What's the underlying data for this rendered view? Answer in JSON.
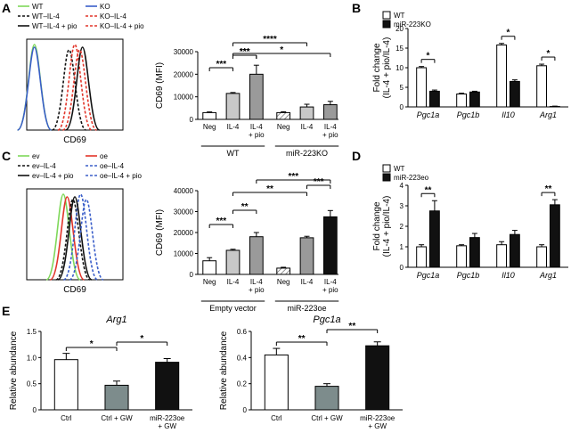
{
  "figure": {
    "panel_labels": [
      "A",
      "B",
      "C",
      "D",
      "E"
    ]
  },
  "colors": {
    "wt": "#7fd85a",
    "ko": "#3a5ec9",
    "ko_il4": "#e2352a",
    "ko_pio": "#e2352a",
    "ev": "#7fd85a",
    "oe": "#e2352a",
    "oe_il4": "#3a5ec9",
    "bar_white": "#ffffff",
    "bar_light": "#c8c8c8",
    "bar_mid": "#9a9a9a",
    "bar_dark": "#7a7a7a",
    "bar_black": "#111111",
    "bar_teal": "#7d8c8c"
  },
  "chart_data": [
    {
      "id": "A_histogram",
      "type": "line",
      "xlabel": "CD69",
      "legend": [
        "WT",
        "KO",
        "WT–IL-4",
        "KO–IL-4",
        "WT–IL-4 + pio",
        "KO–IL-4 + pio"
      ],
      "legend_styles": [
        "solid",
        "solid",
        "dashed",
        "dashed",
        "solid",
        "dashed"
      ],
      "legend_colors": [
        "#7fd85a",
        "#3a5ec9",
        "#111111",
        "#e2352a",
        "#111111",
        "#e2352a"
      ],
      "peaks": [
        0.08,
        0.08,
        0.44,
        0.5,
        0.58,
        0.55
      ]
    },
    {
      "id": "A_bar",
      "type": "bar",
      "ylabel": "CD69 (MFI)",
      "ylim": [
        0,
        30000
      ],
      "yticks": [
        0,
        10000,
        20000,
        30000
      ],
      "categories": [
        "Neg",
        "IL-4",
        "IL-4\n+ pio",
        "Neg",
        "IL-4",
        "IL-4\n+ pio"
      ],
      "groups": [
        "WT",
        "miR-223KO"
      ],
      "values": [
        3000,
        11500,
        20000,
        3000,
        5500,
        6500
      ],
      "errors": [
        300,
        400,
        4000,
        400,
        1200,
        1500
      ],
      "fills": [
        "white",
        "light",
        "mid",
        "hatch",
        "light",
        "mid"
      ],
      "significance": [
        "***",
        "***",
        "***",
        "****",
        "*"
      ]
    },
    {
      "id": "B_bar",
      "type": "bar",
      "ylabel": "Fold change\n(IL-4 + pio/IL-4)",
      "ylim": [
        0,
        20
      ],
      "yticks": [
        0,
        5,
        10,
        15,
        20
      ],
      "categories": [
        "Pgc1a",
        "Pgc1b",
        "Il10",
        "Arg1"
      ],
      "series": [
        {
          "name": "WT",
          "values": [
            10,
            3.3,
            15.8,
            10.5
          ],
          "errors": [
            0.3,
            0.2,
            0.4,
            0.4
          ]
        },
        {
          "name": "miR-223KO",
          "values": [
            4,
            3.8,
            6.5,
            0.1
          ],
          "errors": [
            0.3,
            0.2,
            0.4,
            0.1
          ]
        }
      ],
      "significance": [
        "*",
        "",
        "*",
        "*"
      ]
    },
    {
      "id": "C_histogram",
      "type": "line",
      "xlabel": "CD69",
      "legend": [
        "ev",
        "oe",
        "ev–IL-4",
        "oe–IL-4",
        "ev–IL-4 + pio",
        "oe–IL-4 + pio"
      ],
      "legend_styles": [
        "solid",
        "solid",
        "dashed",
        "dashed",
        "solid",
        "dashed"
      ],
      "legend_colors": [
        "#7fd85a",
        "#e2352a",
        "#111111",
        "#3a5ec9",
        "#111111",
        "#3a5ec9"
      ],
      "peaks": [
        0.38,
        0.42,
        0.48,
        0.56,
        0.5,
        0.62
      ]
    },
    {
      "id": "C_bar",
      "type": "bar",
      "ylabel": "CD69 (MFI)",
      "ylim": [
        0,
        40000
      ],
      "yticks": [
        0,
        10000,
        20000,
        30000,
        40000
      ],
      "categories": [
        "Neg",
        "IL-4",
        "IL-4\n+ pio",
        "Neg",
        "IL-4",
        "IL-4\n+ pio"
      ],
      "groups": [
        "Empty vector",
        "miR-223oe"
      ],
      "values": [
        6500,
        11500,
        18000,
        3000,
        17500,
        27500
      ],
      "errors": [
        1500,
        500,
        2000,
        400,
        700,
        3000
      ],
      "fills": [
        "white",
        "light",
        "mid",
        "hatch",
        "mid",
        "black"
      ],
      "significance": [
        "***",
        "**",
        "**",
        "***",
        "***"
      ]
    },
    {
      "id": "D_bar",
      "type": "bar",
      "ylabel": "Fold change\n(IL-4 + pio/IL-4)",
      "ylim": [
        0,
        4
      ],
      "yticks": [
        0,
        1,
        2,
        3,
        4
      ],
      "categories": [
        "Pgc1a",
        "Pgc1b",
        "Il10",
        "Arg1"
      ],
      "series": [
        {
          "name": "WT",
          "values": [
            1.0,
            1.05,
            1.1,
            1.0
          ],
          "errors": [
            0.1,
            0.05,
            0.15,
            0.1
          ]
        },
        {
          "name": "miR-223eo",
          "values": [
            2.75,
            1.45,
            1.6,
            3.05
          ],
          "errors": [
            0.5,
            0.2,
            0.2,
            0.25
          ]
        }
      ],
      "significance": [
        "**",
        "",
        "",
        "**"
      ]
    },
    {
      "id": "E_arg1",
      "type": "bar",
      "title": "Arg1",
      "ylabel": "Relative abundance",
      "ylim": [
        0,
        1.5
      ],
      "yticks": [
        0,
        0.5,
        1.0,
        1.5
      ],
      "ytick_labels": [
        "0",
        "0.5",
        "1.0",
        "1.5"
      ],
      "categories": [
        "Ctrl",
        "Ctrl + GW",
        "miR-223oe\n+ GW"
      ],
      "values": [
        0.96,
        0.47,
        0.91
      ],
      "errors": [
        0.12,
        0.08,
        0.07
      ],
      "fills": [
        "white",
        "teal",
        "black"
      ],
      "significance": [
        "*",
        "*"
      ]
    },
    {
      "id": "E_pgc1a",
      "type": "bar",
      "title": "Pgc1a",
      "ylabel": "Relative abundance",
      "ylim": [
        0,
        0.6
      ],
      "yticks": [
        0,
        0.2,
        0.4,
        0.6
      ],
      "ytick_labels": [
        "0",
        "0.2",
        "0.4",
        "0.6"
      ],
      "categories": [
        "Ctrl",
        "Ctrl + GW",
        "miR-223oe\n+ GW"
      ],
      "values": [
        0.42,
        0.18,
        0.49
      ],
      "errors": [
        0.05,
        0.02,
        0.03
      ],
      "fills": [
        "white",
        "teal",
        "black"
      ],
      "significance": [
        "**",
        "**"
      ]
    }
  ]
}
